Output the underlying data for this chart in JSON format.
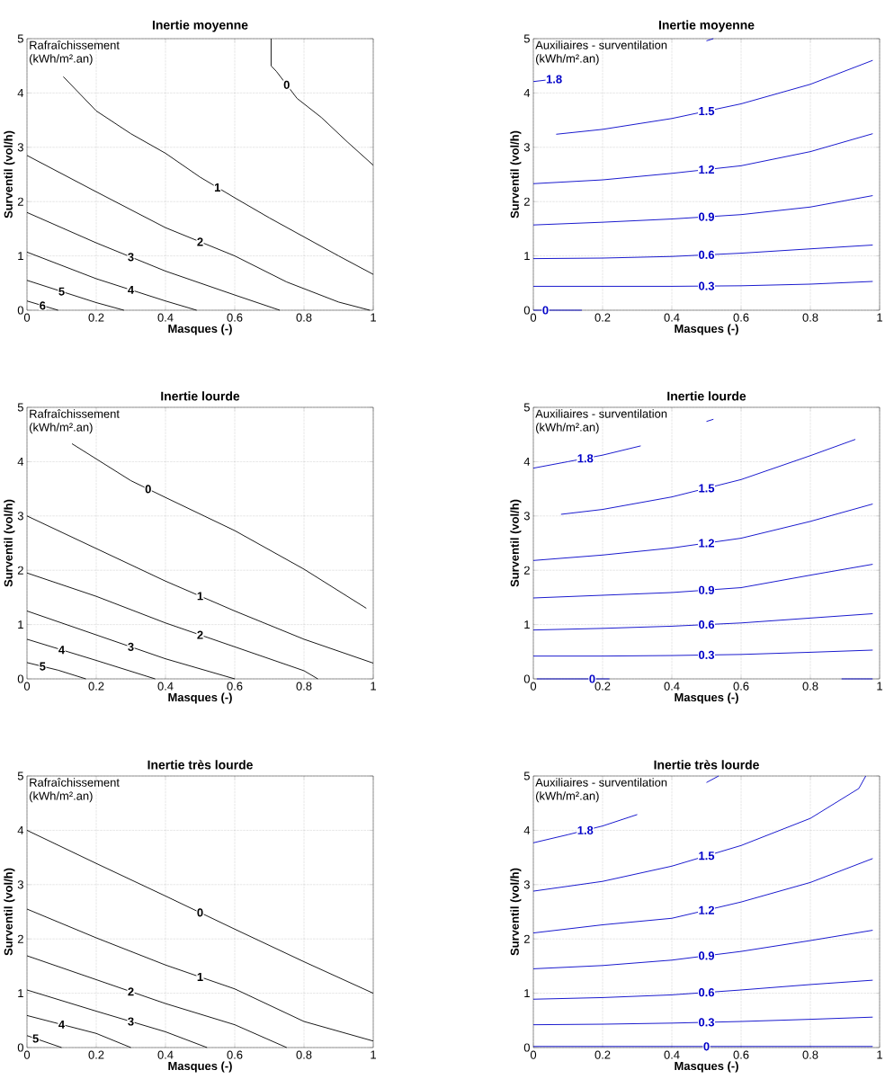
{
  "chart_data": [
    {
      "type": "line",
      "title": "Inertie moyenne",
      "xlabel": "Masques (-)",
      "ylabel": "Surventil (vol/h)",
      "annotations": [
        "Rafraîchissement",
        "(kWh/m².an)"
      ],
      "xlim": [
        0,
        1
      ],
      "ylim": [
        0,
        5
      ],
      "xticks": [
        0,
        0.2,
        0.4,
        0.6,
        0.8,
        1
      ],
      "yticks": [
        0,
        1,
        2,
        3,
        4,
        5
      ],
      "grid": true,
      "series": [
        {
          "name": "0",
          "color": "#000000",
          "x": [
            0.705,
            0.705,
            0.72,
            0.78,
            0.85,
            0.925,
            1
          ],
          "values": [
            5,
            4.5,
            4.4,
            3.9,
            3.55,
            3.1,
            2.67
          ]
        },
        {
          "name": "1",
          "color": "#000000",
          "x": [
            0.105,
            0.2,
            0.3,
            0.4,
            0.5,
            0.6,
            0.7,
            0.8,
            0.9,
            1
          ],
          "values": [
            4.3,
            3.67,
            3.25,
            2.89,
            2.45,
            2.07,
            1.7,
            1.35,
            1.0,
            0.66
          ]
        },
        {
          "name": "2",
          "color": "#000000",
          "x": [
            0,
            0.2,
            0.4,
            0.6,
            0.75,
            0.9,
            0.99
          ],
          "values": [
            2.85,
            2.18,
            1.52,
            1.0,
            0.52,
            0.15,
            0
          ]
        },
        {
          "name": "3",
          "color": "#000000",
          "x": [
            0,
            0.2,
            0.4,
            0.6,
            0.73
          ],
          "values": [
            1.8,
            1.24,
            0.72,
            0.28,
            0
          ]
        },
        {
          "name": "4",
          "color": "#000000",
          "x": [
            0,
            0.2,
            0.4,
            0.49
          ],
          "values": [
            1.07,
            0.58,
            0.17,
            0
          ]
        },
        {
          "name": "5",
          "color": "#000000",
          "x": [
            0,
            0.2,
            0.28
          ],
          "values": [
            0.55,
            0.14,
            0
          ]
        },
        {
          "name": "6",
          "color": "#000000",
          "x": [
            0,
            0.09
          ],
          "values": [
            0.17,
            0
          ]
        }
      ]
    },
    {
      "type": "line",
      "title": "Inertie moyenne",
      "xlabel": "Masques (-)",
      "ylabel": "Surventil (vol/h)",
      "annotations": [
        "Auxiliaires - surventilation",
        "(kWh/m².an)"
      ],
      "xlim": [
        0,
        1
      ],
      "ylim": [
        0,
        5
      ],
      "xticks": [
        0,
        0.2,
        0.4,
        0.6,
        0.8,
        1
      ],
      "yticks": [
        0,
        1,
        2,
        3,
        4,
        5
      ],
      "grid": true,
      "series": [
        {
          "name": "0",
          "color": "#0000c8",
          "x": [
            0,
            0.07,
            0.14
          ],
          "values": [
            0,
            0,
            0
          ]
        },
        {
          "name": "0.3",
          "color": "#0000c8",
          "x": [
            0,
            0.2,
            0.4,
            0.6,
            0.8,
            0.98
          ],
          "values": [
            0.44,
            0.44,
            0.44,
            0.45,
            0.48,
            0.53
          ]
        },
        {
          "name": "0.6",
          "color": "#0000c8",
          "x": [
            0,
            0.2,
            0.4,
            0.6,
            0.8,
            0.98
          ],
          "values": [
            0.95,
            0.96,
            0.99,
            1.05,
            1.13,
            1.2
          ]
        },
        {
          "name": "0.9",
          "color": "#0000c8",
          "x": [
            0,
            0.2,
            0.4,
            0.6,
            0.8,
            0.98
          ],
          "values": [
            1.57,
            1.62,
            1.68,
            1.76,
            1.9,
            2.11
          ]
        },
        {
          "name": "1.2",
          "color": "#0000c8",
          "x": [
            0,
            0.2,
            0.4,
            0.6,
            0.8,
            0.98
          ],
          "values": [
            2.33,
            2.4,
            2.52,
            2.66,
            2.92,
            3.25
          ]
        },
        {
          "name": "1.5",
          "color": "#0000c8",
          "x": [
            0.066,
            0.2,
            0.4,
            0.6,
            0.8,
            0.98
          ],
          "values": [
            3.24,
            3.33,
            3.53,
            3.8,
            4.16,
            4.6
          ]
        },
        {
          "name": "1.8",
          "color": "#0000c8",
          "x": [
            0,
            0.04,
            0.08,
            0.3,
            0.5,
            0.52
          ],
          "values": [
            4.21,
            4.24,
            4.27,
            null,
            4.96,
            5
          ]
        }
      ]
    },
    {
      "type": "line",
      "title": "Inertie lourde",
      "xlabel": "Masques (-)",
      "ylabel": "Surventil (vol/h)",
      "annotations": [
        "Rafraîchissement",
        "(kWh/m².an)"
      ],
      "xlim": [
        0,
        1
      ],
      "ylim": [
        0,
        5
      ],
      "xticks": [
        0,
        0.2,
        0.4,
        0.6,
        0.8,
        1
      ],
      "yticks": [
        0,
        1,
        2,
        3,
        4,
        5
      ],
      "grid": true,
      "series": [
        {
          "name": "0",
          "color": "#000000",
          "x": [
            0.13,
            0.2,
            0.3,
            0.4,
            0.6,
            0.8,
            0.98
          ],
          "values": [
            4.33,
            4.05,
            3.65,
            3.34,
            2.73,
            2.02,
            1.3
          ]
        },
        {
          "name": "1",
          "color": "#000000",
          "x": [
            0,
            0.2,
            0.4,
            0.6,
            0.8,
            1
          ],
          "values": [
            3.0,
            2.4,
            1.8,
            1.25,
            0.73,
            0.29
          ]
        },
        {
          "name": "2",
          "color": "#000000",
          "x": [
            0,
            0.2,
            0.4,
            0.6,
            0.8,
            0.84
          ],
          "values": [
            1.95,
            1.52,
            1.03,
            0.59,
            0.15,
            0
          ]
        },
        {
          "name": "3",
          "color": "#000000",
          "x": [
            0,
            0.2,
            0.4,
            0.6
          ],
          "values": [
            1.25,
            0.81,
            0.37,
            0
          ]
        },
        {
          "name": "4",
          "color": "#000000",
          "x": [
            0,
            0.2,
            0.37
          ],
          "values": [
            0.73,
            0.34,
            0
          ]
        },
        {
          "name": "5",
          "color": "#000000",
          "x": [
            0,
            0.09,
            0.17
          ],
          "values": [
            0.3,
            0.16,
            0
          ]
        }
      ]
    },
    {
      "type": "line",
      "title": "Inertie lourde",
      "xlabel": "Masques (-)",
      "ylabel": "Surventil (vol/h)",
      "annotations": [
        "Auxiliaires - surventilation",
        "(kWh/m².an)"
      ],
      "xlim": [
        0,
        1
      ],
      "ylim": [
        0,
        5
      ],
      "xticks": [
        0,
        0.2,
        0.4,
        0.6,
        0.8,
        1
      ],
      "yticks": [
        0,
        1,
        2,
        3,
        4,
        5
      ],
      "grid": true,
      "series": [
        {
          "name": "0",
          "color": "#0000c8",
          "x": [
            0.01,
            0.12,
            0.22,
            0.5,
            0.89,
            0.98
          ],
          "values": [
            0,
            0,
            0,
            null,
            0,
            0
          ]
        },
        {
          "name": "0.3",
          "color": "#0000c8",
          "x": [
            0,
            0.2,
            0.4,
            0.6,
            0.8,
            0.98
          ],
          "values": [
            0.42,
            0.42,
            0.43,
            0.45,
            0.49,
            0.53
          ]
        },
        {
          "name": "0.6",
          "color": "#0000c8",
          "x": [
            0,
            0.2,
            0.4,
            0.6,
            0.8,
            0.98
          ],
          "values": [
            0.9,
            0.93,
            0.97,
            1.03,
            1.12,
            1.2
          ]
        },
        {
          "name": "0.9",
          "color": "#0000c8",
          "x": [
            0,
            0.2,
            0.4,
            0.6,
            0.8,
            0.98
          ],
          "values": [
            1.49,
            1.54,
            1.59,
            1.68,
            1.91,
            2.11
          ]
        },
        {
          "name": "1.2",
          "color": "#0000c8",
          "x": [
            0,
            0.2,
            0.4,
            0.6,
            0.8,
            0.98
          ],
          "values": [
            2.18,
            2.28,
            2.41,
            2.59,
            2.9,
            3.22
          ]
        },
        {
          "name": "1.5",
          "color": "#0000c8",
          "x": [
            0.08,
            0.2,
            0.4,
            0.6,
            0.8,
            0.93
          ],
          "values": [
            3.03,
            3.12,
            3.35,
            3.67,
            4.11,
            4.41
          ]
        },
        {
          "name": "1.8",
          "color": "#0000c8",
          "x": [
            0,
            0.1,
            0.2,
            0.31,
            0.4,
            0.5,
            0.52
          ],
          "values": [
            3.88,
            4.0,
            4.12,
            4.29,
            null,
            4.74,
            4.78
          ]
        }
      ]
    },
    {
      "type": "line",
      "title": "Inertie très lourde",
      "xlabel": "Masques (-)",
      "ylabel": "Surventil (vol/h)",
      "annotations": [
        "Rafraîchissement",
        "(kWh/m².an)"
      ],
      "xlim": [
        0,
        1
      ],
      "ylim": [
        0,
        5
      ],
      "xticks": [
        0,
        0.2,
        0.4,
        0.6,
        0.8,
        1
      ],
      "yticks": [
        0,
        1,
        2,
        3,
        4,
        5
      ],
      "grid": true,
      "series": [
        {
          "name": "0",
          "color": "#000000",
          "x": [
            0,
            0.2,
            0.4,
            0.6,
            0.8,
            1
          ],
          "values": [
            4.0,
            3.39,
            2.79,
            2.18,
            1.58,
            1.0
          ]
        },
        {
          "name": "1",
          "color": "#000000",
          "x": [
            0,
            0.2,
            0.4,
            0.6,
            0.8,
            1
          ],
          "values": [
            2.55,
            2.02,
            1.52,
            1.08,
            0.48,
            0.12
          ]
        },
        {
          "name": "2",
          "color": "#000000",
          "x": [
            0,
            0.2,
            0.4,
            0.6,
            0.75
          ],
          "values": [
            1.69,
            1.25,
            0.81,
            0.42,
            0
          ]
        },
        {
          "name": "3",
          "color": "#000000",
          "x": [
            0,
            0.2,
            0.4,
            0.52
          ],
          "values": [
            1.06,
            0.67,
            0.29,
            0
          ]
        },
        {
          "name": "4",
          "color": "#000000",
          "x": [
            0,
            0.2,
            0.3
          ],
          "values": [
            0.59,
            0.26,
            0
          ]
        },
        {
          "name": "5",
          "color": "#000000",
          "x": [
            0,
            0.05,
            0.1
          ],
          "values": [
            0.22,
            0.11,
            0
          ]
        }
      ]
    },
    {
      "type": "line",
      "title": "Inertie très lourde",
      "xlabel": "Masques (-)",
      "ylabel": "Surventil (vol/h)",
      "annotations": [
        "Auxiliaires - surventilation",
        "(kWh/m².an)"
      ],
      "xlim": [
        0,
        1
      ],
      "ylim": [
        0,
        5
      ],
      "xticks": [
        0,
        0.2,
        0.4,
        0.6,
        0.8,
        1
      ],
      "yticks": [
        0,
        1,
        2,
        3,
        4,
        5
      ],
      "grid": true,
      "series": [
        {
          "name": "0",
          "color": "#0000c8",
          "x": [
            0,
            0.2,
            0.4,
            0.6,
            0.8,
            0.98
          ],
          "values": [
            0.02,
            0.02,
            0.02,
            0.02,
            0.02,
            0.02
          ]
        },
        {
          "name": "0.3",
          "color": "#0000c8",
          "x": [
            0,
            0.2,
            0.4,
            0.6,
            0.8,
            0.98
          ],
          "values": [
            0.42,
            0.43,
            0.45,
            0.48,
            0.52,
            0.56
          ]
        },
        {
          "name": "0.6",
          "color": "#0000c8",
          "x": [
            0,
            0.2,
            0.4,
            0.6,
            0.8,
            0.98
          ],
          "values": [
            0.89,
            0.92,
            0.97,
            1.06,
            1.16,
            1.24
          ]
        },
        {
          "name": "0.9",
          "color": "#0000c8",
          "x": [
            0,
            0.2,
            0.4,
            0.6,
            0.8,
            0.98
          ],
          "values": [
            1.45,
            1.51,
            1.61,
            1.77,
            1.97,
            2.16
          ]
        },
        {
          "name": "1.2",
          "color": "#0000c8",
          "x": [
            0,
            0.2,
            0.4,
            0.6,
            0.8,
            0.98
          ],
          "values": [
            2.11,
            2.26,
            2.38,
            2.68,
            3.04,
            3.48
          ]
        },
        {
          "name": "1.5",
          "color": "#0000c8",
          "x": [
            0,
            0.2,
            0.4,
            0.6,
            0.8,
            0.94,
            0.96
          ],
          "values": [
            2.88,
            3.06,
            3.34,
            3.72,
            4.22,
            4.77,
            5
          ]
        },
        {
          "name": "1.8",
          "color": "#0000c8",
          "x": [
            0,
            0.1,
            0.2,
            0.3,
            0.4,
            0.5,
            0.535
          ],
          "values": [
            3.77,
            3.92,
            4.08,
            4.29,
            null,
            4.88,
            5
          ]
        }
      ]
    }
  ]
}
